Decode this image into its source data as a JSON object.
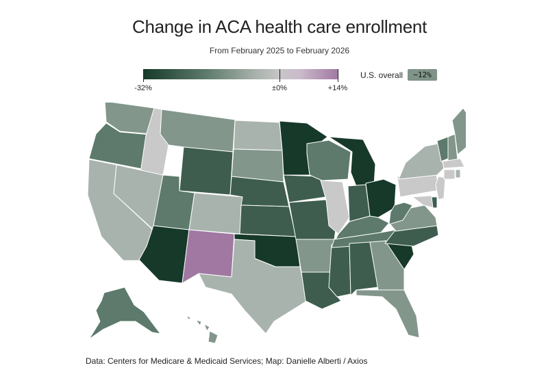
{
  "title": "Change in ACA health care enrollment",
  "subtitle": "From February 2025 to February 2026",
  "legend": {
    "min_label": "-32%",
    "mid_label": "±0%",
    "max_label": "+14%",
    "min_value": -32,
    "mid_value": 0,
    "max_value": 14,
    "colors": [
      "#16392a",
      "#5d7a6c",
      "#a9b3ad",
      "#c7c5c7",
      "#a078a2"
    ]
  },
  "overall": {
    "label": "U.S. overall",
    "value": "−12%"
  },
  "source": "Data: Centers for Medicare & Medicaid Services; Map: Danielle Alberti / Axios",
  "colors": {
    "darkest": "#16392a",
    "dark": "#3e5d4f",
    "medium": "#5d7a6c",
    "light": "#82968b",
    "lighter": "#a9b3ad",
    "neutral": "#c9c9c9",
    "positive": "#a078a2"
  }
}
